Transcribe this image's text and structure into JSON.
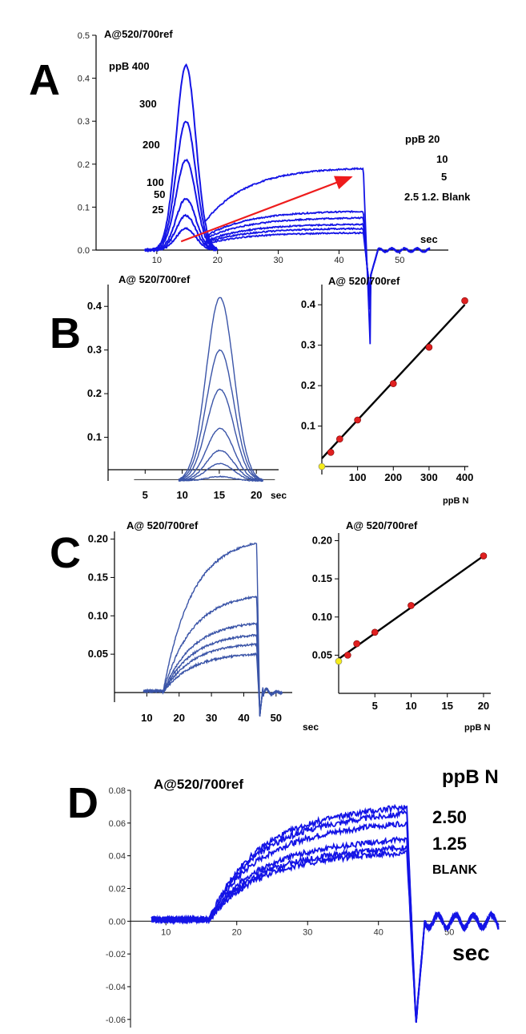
{
  "colors": {
    "trace": "#1414e6",
    "trace_b": "#3b55a8",
    "arrow": "#ee1c1c",
    "point": "#e02020",
    "blank_point": "#f5ec1a",
    "axis": "#000000"
  },
  "panels": {
    "A": {
      "letter": "A",
      "ylabel": "A@520/700ref",
      "xlabel": "sec",
      "conc_header_left": "ppB 400",
      "labels_left": [
        "300",
        "200",
        "100",
        "50",
        "25"
      ],
      "conc_header_right": "ppB  20",
      "labels_right": [
        "10",
        "5",
        "2.5 1.2. Blank"
      ]
    },
    "B": {
      "letter": "B",
      "left_ylabel": "A@ 520/700ref",
      "left_xlabel": "sec",
      "right_ylabel": "A@ 520/700ref",
      "right_xlabel": "ppB N"
    },
    "C": {
      "letter": "C",
      "left_ylabel": "A@ 520/700ref",
      "left_xlabel": "sec",
      "right_ylabel": "A@ 520/700ref",
      "right_xlabel": "ppB N"
    },
    "D": {
      "letter": "D",
      "ylabel": "A@520/700ref",
      "xlabel": "sec",
      "legend_header": "ppB N",
      "labels": [
        "2.50",
        "1.25",
        "BLANK"
      ]
    }
  },
  "chart_data": [
    {
      "id": "A",
      "type": "line",
      "xlabel": "sec",
      "ylabel": "A@520/700ref",
      "xlim": [
        0,
        58
      ],
      "ylim": [
        0,
        0.5
      ],
      "xticks": [
        "10",
        "20",
        "30",
        "40",
        "50"
      ],
      "yticks": [
        "0.0",
        "0.1",
        "0.2",
        "0.3",
        "0.4",
        "0.5"
      ],
      "peak_series": [
        {
          "name": "400",
          "peak": 0.43
        },
        {
          "name": "300",
          "peak": 0.3
        },
        {
          "name": "200",
          "peak": 0.21
        },
        {
          "name": "100",
          "peak": 0.12
        },
        {
          "name": "50",
          "peak": 0.08
        },
        {
          "name": "25",
          "peak": 0.05
        }
      ],
      "plateau_series": [
        {
          "name": "20",
          "end": 0.19
        },
        {
          "name": "10",
          "end": 0.09
        },
        {
          "name": "5",
          "end": 0.075
        },
        {
          "name": "2.5",
          "end": 0.06
        },
        {
          "name": "1.2",
          "end": 0.05
        },
        {
          "name": "Blank",
          "end": 0.04
        }
      ],
      "annotation_arrow": {
        "from": [
          14,
          0.02
        ],
        "to": [
          42,
          0.17
        ]
      }
    },
    {
      "id": "B-left",
      "type": "line",
      "xlabel": "sec",
      "ylabel": "A@ 520/700ref",
      "xlim": [
        0,
        23
      ],
      "ylim": [
        0,
        0.45
      ],
      "xticks": [
        "5",
        "10",
        "15",
        "20"
      ],
      "yticks": [
        "0.1",
        "0.2",
        "0.3",
        "0.4"
      ],
      "series": [
        {
          "name": "400",
          "peak": 0.42
        },
        {
          "name": "300",
          "peak": 0.3
        },
        {
          "name": "200",
          "peak": 0.21
        },
        {
          "name": "100",
          "peak": 0.12
        },
        {
          "name": "50",
          "peak": 0.07
        },
        {
          "name": "25",
          "peak": 0.04
        },
        {
          "name": "blank",
          "peak": 0.01
        }
      ]
    },
    {
      "id": "B-right",
      "type": "scatter",
      "xlabel": "ppB N",
      "ylabel": "A@ 520/700ref",
      "xlim": [
        0,
        410
      ],
      "ylim": [
        0,
        0.45
      ],
      "xticks": [
        "100",
        "200",
        "300",
        "400"
      ],
      "yticks": [
        "0.1",
        "0.2",
        "0.3",
        "0.4"
      ],
      "points": [
        [
          0,
          0.0
        ],
        [
          25,
          0.035
        ],
        [
          50,
          0.068
        ],
        [
          100,
          0.115
        ],
        [
          200,
          0.205
        ],
        [
          300,
          0.295
        ],
        [
          400,
          0.41
        ]
      ],
      "blank_point": [
        0,
        0.0
      ],
      "fit_line": [
        [
          0,
          0.02
        ],
        [
          400,
          0.4
        ]
      ]
    },
    {
      "id": "C-left",
      "type": "line",
      "xlabel": "sec",
      "ylabel": "A@ 520/700ref",
      "xlim": [
        0,
        55
      ],
      "ylim": [
        0,
        0.21
      ],
      "xticks": [
        "10",
        "20",
        "30",
        "40",
        "50"
      ],
      "yticks": [
        "0.05",
        "0.10",
        "0.15",
        "0.20"
      ],
      "series": [
        {
          "name": "20",
          "end": 0.195
        },
        {
          "name": "10",
          "end": 0.125
        },
        {
          "name": "5",
          "end": 0.09
        },
        {
          "name": "2.5",
          "end": 0.075
        },
        {
          "name": "1.2",
          "end": 0.063
        },
        {
          "name": "Blank",
          "end": 0.05
        }
      ]
    },
    {
      "id": "C-right",
      "type": "scatter",
      "xlabel": "ppB N",
      "ylabel": "A@ 520/700ref",
      "xlim": [
        0,
        21
      ],
      "ylim": [
        0,
        0.21
      ],
      "xticks": [
        "5",
        "10",
        "15",
        "20"
      ],
      "yticks": [
        "0.05",
        "0.10",
        "0.15",
        "0.20"
      ],
      "points": [
        [
          1.25,
          0.05
        ],
        [
          2.5,
          0.065
        ],
        [
          5,
          0.08
        ],
        [
          10,
          0.115
        ],
        [
          20,
          0.18
        ]
      ],
      "blank_point": [
        0,
        0.042
      ],
      "fit_line": [
        [
          0,
          0.045
        ],
        [
          20,
          0.18
        ]
      ]
    },
    {
      "id": "D",
      "type": "line",
      "xlabel": "sec",
      "ylabel": "A@520/700ref",
      "xlim": [
        5,
        58
      ],
      "ylim": [
        -0.065,
        0.08
      ],
      "xticks": [
        "10",
        "20",
        "30",
        "40",
        "50"
      ],
      "yticks": [
        "0.08",
        "0.06",
        "0.04",
        "0.02",
        "0.00",
        "-0.02",
        "-0.04",
        "-0.06"
      ],
      "series": [
        {
          "name": "2.50",
          "end": 0.07
        },
        {
          "name": "1.25",
          "end": 0.06
        },
        {
          "name": "BLANK",
          "end": 0.045
        }
      ]
    }
  ]
}
